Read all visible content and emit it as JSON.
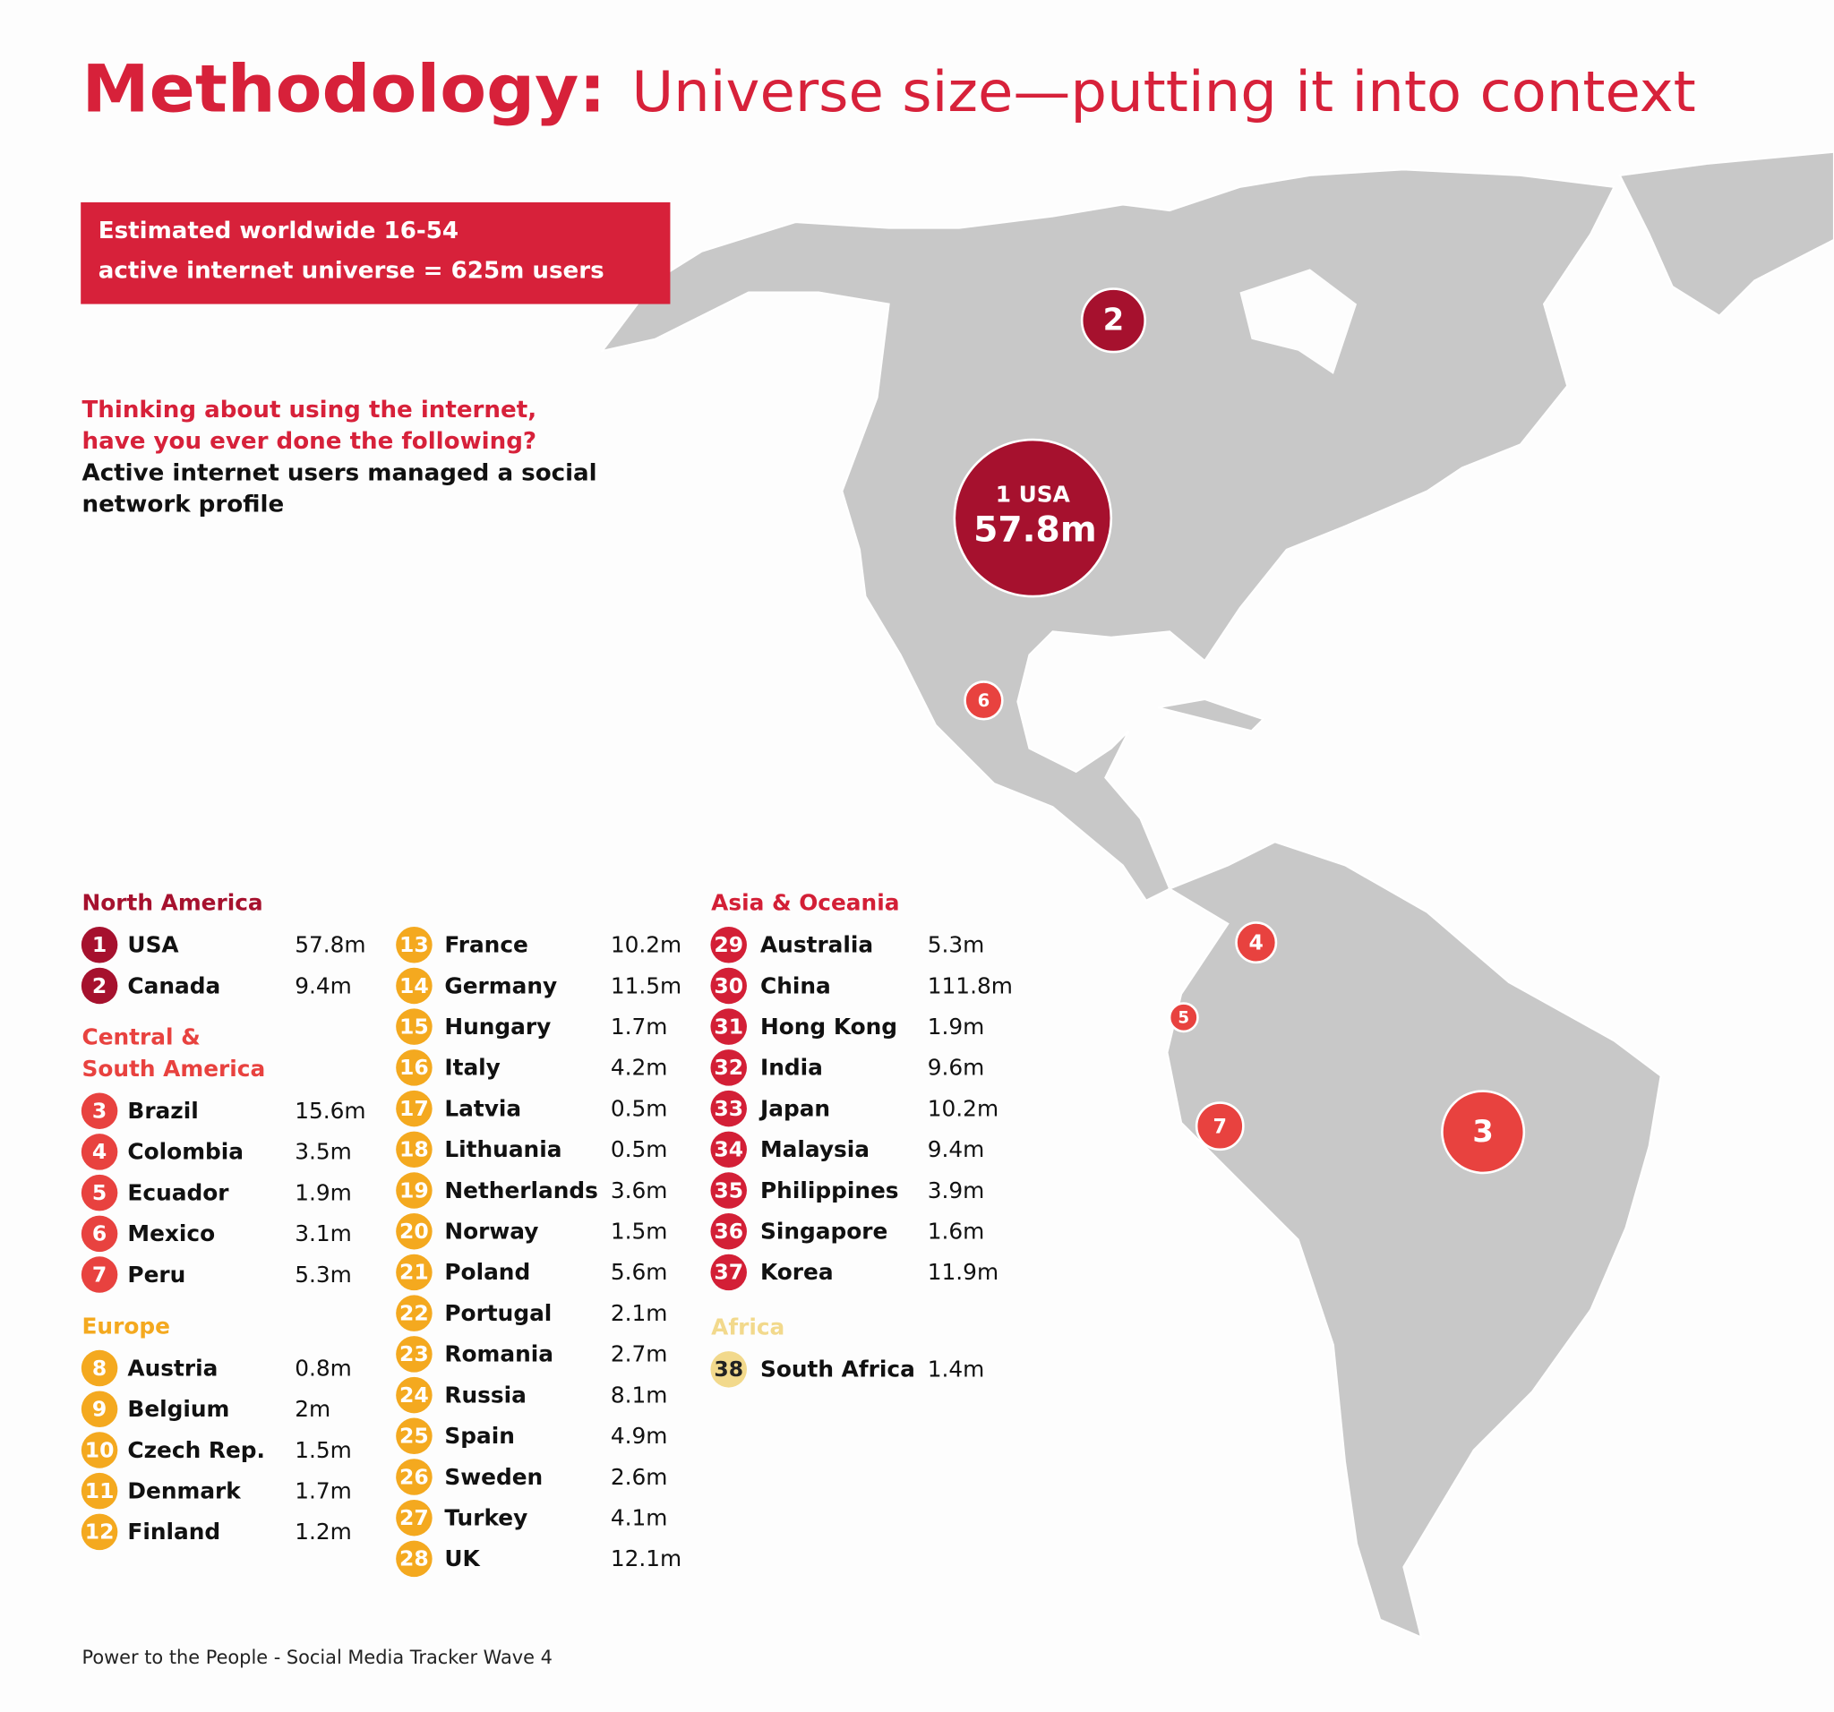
{
  "header": {
    "title_bold": "Methodology:",
    "title_rest": "Universe size—putting it into context"
  },
  "universe_box": {
    "lines": [
      "Estimated worldwide 16-54",
      "active internet universe = 625m users"
    ]
  },
  "question": {
    "red_lines": [
      "Thinking about using the internet,",
      "have you ever done the following?"
    ],
    "black_lines": [
      "Active internet users managed a social",
      "network profile"
    ]
  },
  "regions": [
    {
      "name": [
        "North America"
      ],
      "color": "#a6112e",
      "label_color": "#ffffff",
      "countries": [
        {
          "rank": 1,
          "name": "USA",
          "value": "57.8m"
        },
        {
          "rank": 2,
          "name": "Canada",
          "value": "9.4m"
        }
      ]
    },
    {
      "name": [
        "Central &",
        "South America"
      ],
      "color": "#e8423f",
      "label_color": "#ffffff",
      "countries": [
        {
          "rank": 3,
          "name": "Brazil",
          "value": "15.6m"
        },
        {
          "rank": 4,
          "name": "Colombia",
          "value": "3.5m"
        },
        {
          "rank": 5,
          "name": "Ecuador",
          "value": "1.9m"
        },
        {
          "rank": 6,
          "name": "Mexico",
          "value": "3.1m"
        },
        {
          "rank": 7,
          "name": "Peru",
          "value": "5.3m"
        }
      ]
    },
    {
      "name": [
        "Europe"
      ],
      "color": "#f4a91f",
      "label_color": "#ffffff",
      "countries": [
        {
          "rank": 8,
          "name": "Austria",
          "value": "0.8m"
        },
        {
          "rank": 9,
          "name": "Belgium",
          "value": "2m"
        },
        {
          "rank": 10,
          "name": "Czech Rep.",
          "value": "1.5m"
        },
        {
          "rank": 11,
          "name": "Denmark",
          "value": "1.7m"
        },
        {
          "rank": 12,
          "name": "Finland",
          "value": "1.2m"
        },
        {
          "rank": 13,
          "name": "France",
          "value": "10.2m"
        },
        {
          "rank": 14,
          "name": "Germany",
          "value": "11.5m"
        },
        {
          "rank": 15,
          "name": "Hungary",
          "value": "1.7m"
        },
        {
          "rank": 16,
          "name": "Italy",
          "value": "4.2m"
        },
        {
          "rank": 17,
          "name": "Latvia",
          "value": "0.5m"
        },
        {
          "rank": 18,
          "name": "Lithuania",
          "value": "0.5m"
        },
        {
          "rank": 19,
          "name": "Netherlands",
          "value": "3.6m"
        },
        {
          "rank": 20,
          "name": "Norway",
          "value": "1.5m"
        },
        {
          "rank": 21,
          "name": "Poland",
          "value": "5.6m"
        },
        {
          "rank": 22,
          "name": "Portugal",
          "value": "2.1m"
        },
        {
          "rank": 23,
          "name": "Romania",
          "value": "2.7m"
        },
        {
          "rank": 24,
          "name": "Russia",
          "value": "8.1m"
        },
        {
          "rank": 25,
          "name": "Spain",
          "value": "4.9m"
        },
        {
          "rank": 26,
          "name": "Sweden",
          "value": "2.6m"
        },
        {
          "rank": 27,
          "name": "Turkey",
          "value": "4.1m"
        },
        {
          "rank": 28,
          "name": "UK",
          "value": "12.1m"
        }
      ]
    },
    {
      "name": [
        "Asia & Oceania"
      ],
      "color": "#d31f36",
      "label_color": "#ffffff",
      "countries": [
        {
          "rank": 29,
          "name": "Australia",
          "value": "5.3m"
        },
        {
          "rank": 30,
          "name": "China",
          "value": "111.8m"
        },
        {
          "rank": 31,
          "name": "Hong Kong",
          "value": "1.9m"
        },
        {
          "rank": 32,
          "name": "India",
          "value": "9.6m"
        },
        {
          "rank": 33,
          "name": "Japan",
          "value": "10.2m"
        },
        {
          "rank": 34,
          "name": "Malaysia",
          "value": "9.4m"
        },
        {
          "rank": 35,
          "name": "Philippines",
          "value": "3.9m"
        },
        {
          "rank": 36,
          "name": "Singapore",
          "value": "1.6m"
        },
        {
          "rank": 37,
          "name": "Korea",
          "value": "11.9m"
        }
      ]
    },
    {
      "name": [
        "Africa"
      ],
      "color": "#f2d98c",
      "label_color": "#222222",
      "countries": [
        {
          "rank": 38,
          "name": "South Africa",
          "value": "1.4m"
        }
      ]
    }
  ],
  "footer": {
    "source": "Power to the People - Social Media Tracker Wave 4"
  }
}
